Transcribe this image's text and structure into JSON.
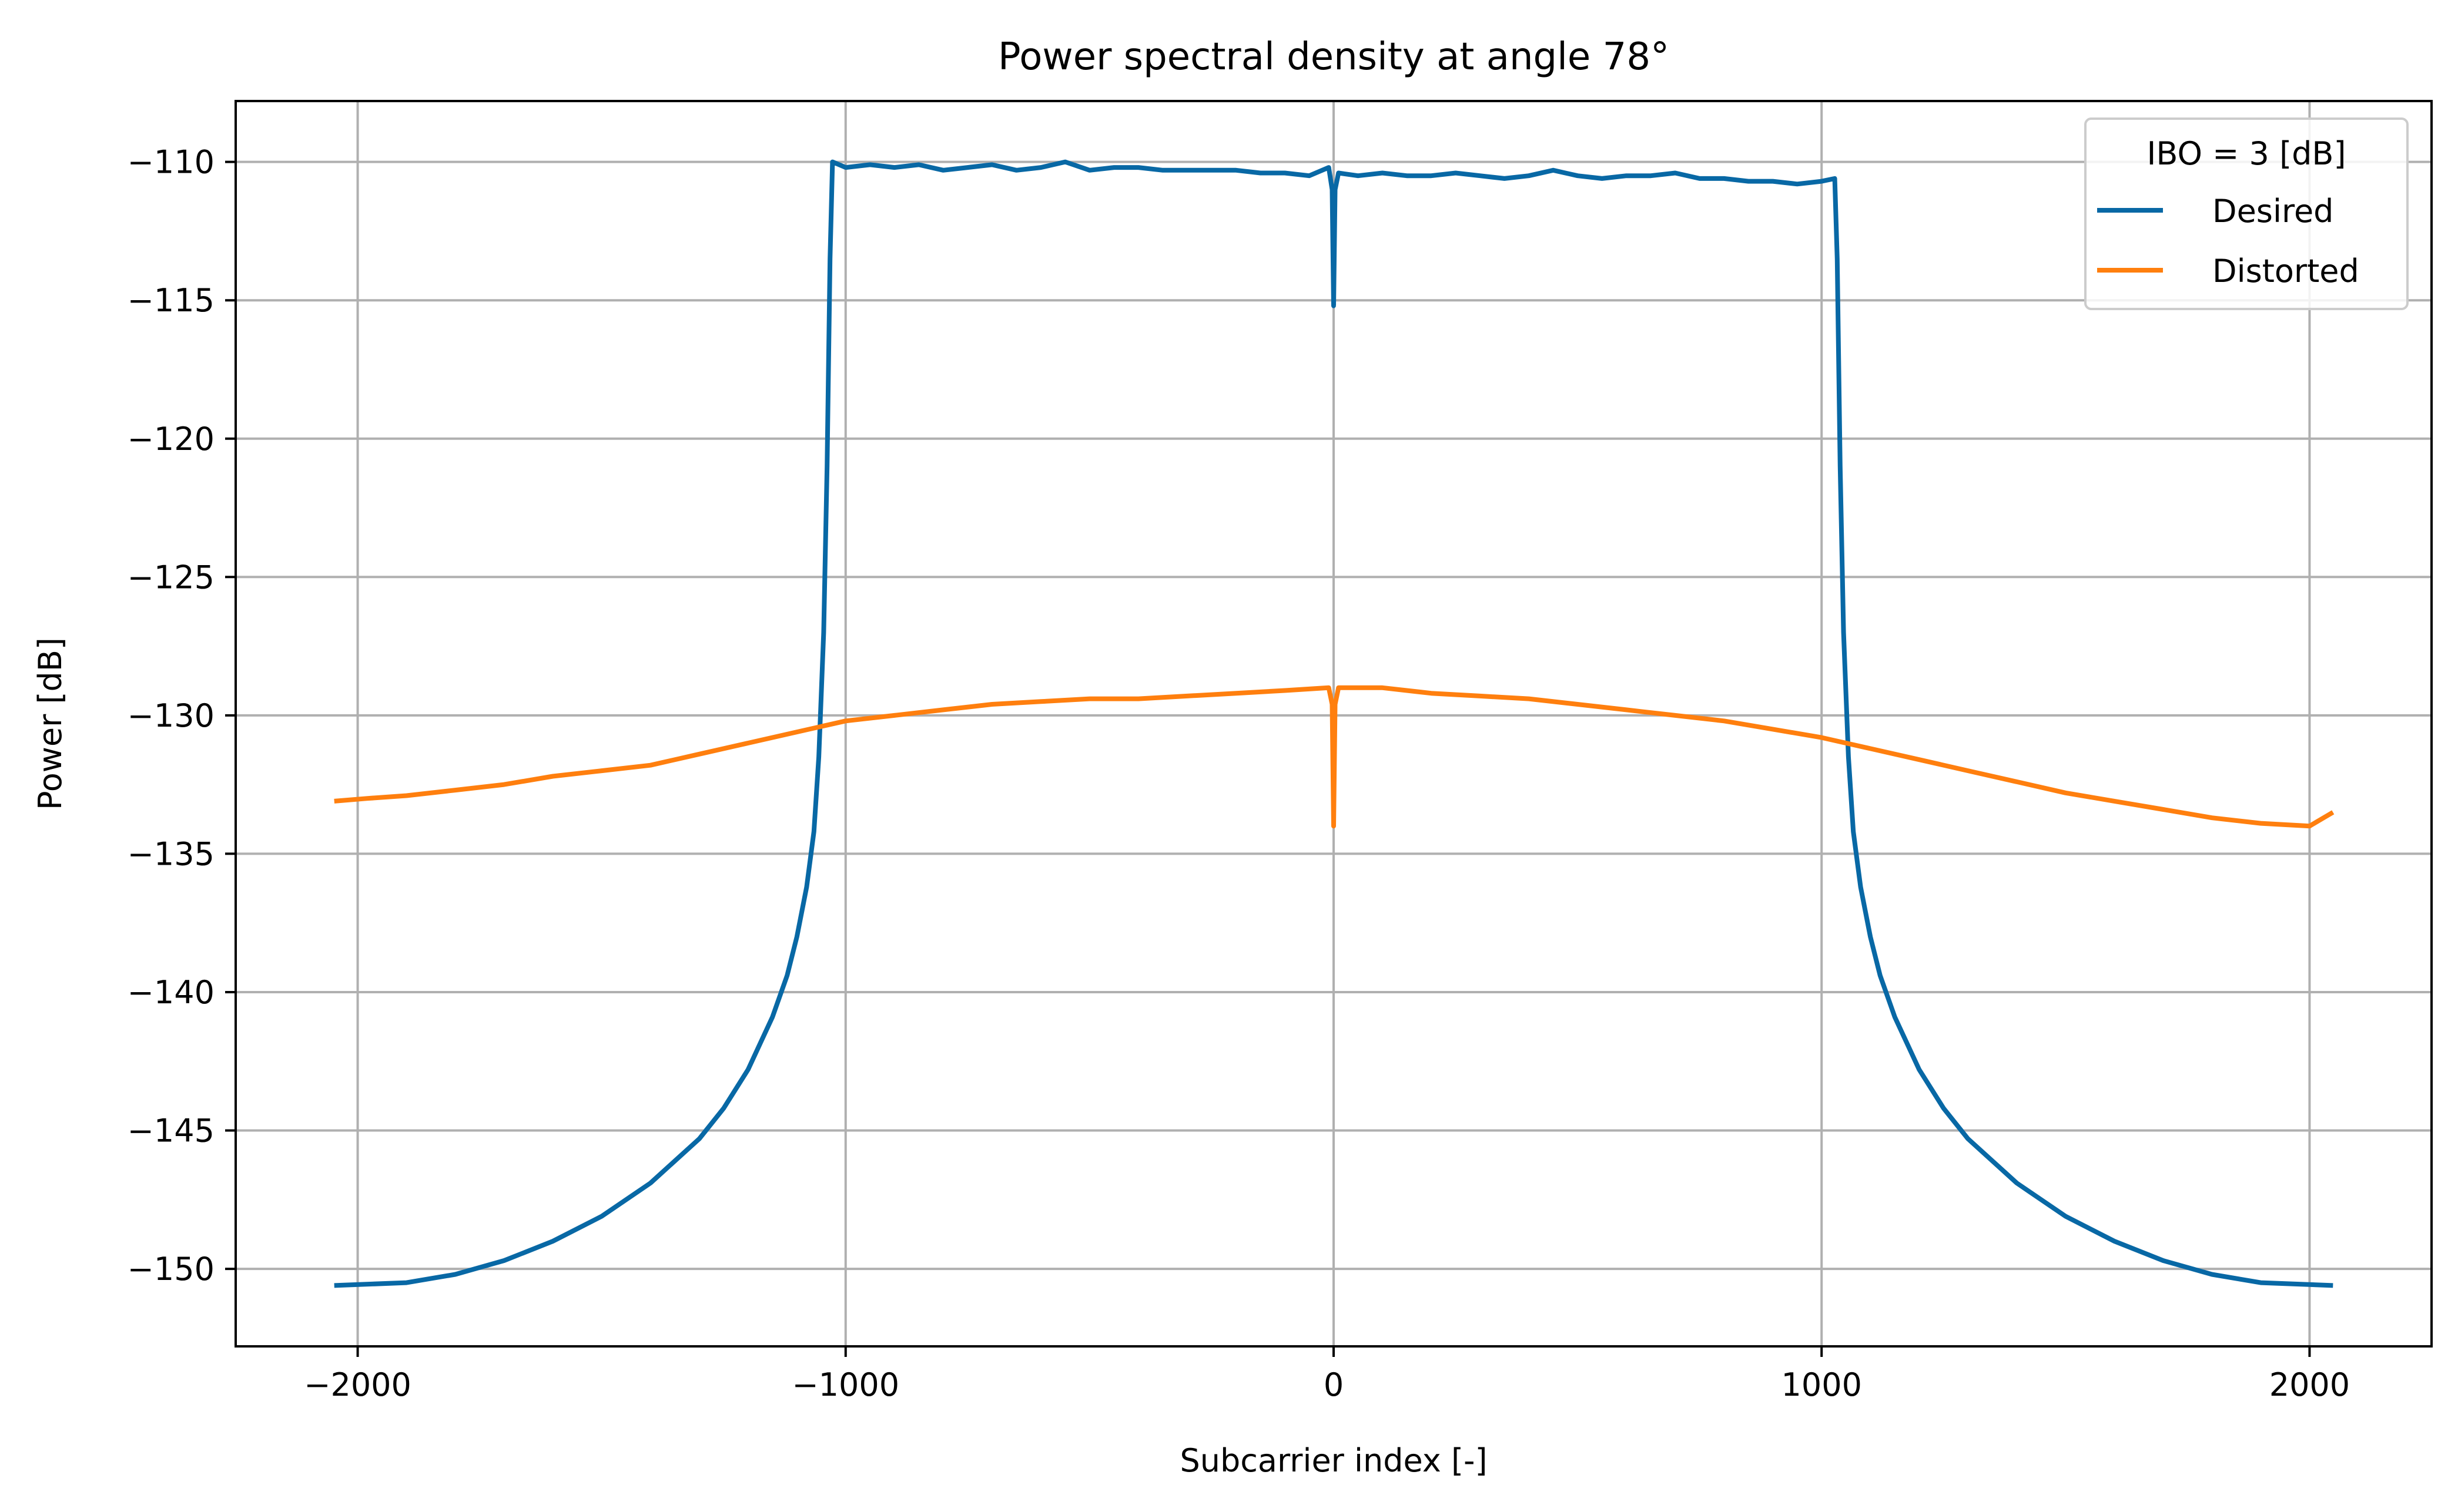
{
  "chart_data": {
    "type": "line",
    "title": "Power spectral density at angle 78°",
    "xlabel": "Subcarrier index [-]",
    "ylabel": "Power [dB]",
    "xlim": [
      -2250,
      2250
    ],
    "ylim": [
      -152.8,
      -107.8
    ],
    "xticks": [
      -2000,
      -1000,
      0,
      1000,
      2000
    ],
    "xtick_labels": [
      "−2000",
      "−1000",
      "0",
      "1000",
      "2000"
    ],
    "yticks": [
      -110,
      -115,
      -120,
      -125,
      -130,
      -135,
      -140,
      -145,
      -150
    ],
    "ytick_labels": [
      "−110",
      "−115",
      "−120",
      "−125",
      "−130",
      "−135",
      "−140",
      "−145",
      "−150"
    ],
    "grid": true,
    "legend": {
      "title": "IBO = 3 [dB]",
      "placement": "top-right"
    },
    "series": [
      {
        "name": "Desired",
        "color": "#0868a5",
        "points": [
          [
            -2048,
            -150.6
          ],
          [
            -1900,
            -150.5
          ],
          [
            -1800,
            -150.2
          ],
          [
            -1700,
            -149.7
          ],
          [
            -1600,
            -149.0
          ],
          [
            -1500,
            -148.1
          ],
          [
            -1400,
            -146.9
          ],
          [
            -1300,
            -145.3
          ],
          [
            -1250,
            -144.2
          ],
          [
            -1200,
            -142.8
          ],
          [
            -1150,
            -140.9
          ],
          [
            -1120,
            -139.4
          ],
          [
            -1100,
            -138.0
          ],
          [
            -1080,
            -136.2
          ],
          [
            -1065,
            -134.2
          ],
          [
            -1055,
            -131.5
          ],
          [
            -1045,
            -127.0
          ],
          [
            -1038,
            -121.0
          ],
          [
            -1032,
            -113.5
          ],
          [
            -1027,
            -110.0
          ],
          [
            -1000,
            -110.2
          ],
          [
            -950,
            -110.1
          ],
          [
            -900,
            -110.2
          ],
          [
            -850,
            -110.1
          ],
          [
            -800,
            -110.3
          ],
          [
            -750,
            -110.2
          ],
          [
            -700,
            -110.1
          ],
          [
            -650,
            -110.3
          ],
          [
            -600,
            -110.2
          ],
          [
            -550,
            -110.0
          ],
          [
            -500,
            -110.3
          ],
          [
            -450,
            -110.2
          ],
          [
            -400,
            -110.2
          ],
          [
            -350,
            -110.3
          ],
          [
            -300,
            -110.3
          ],
          [
            -250,
            -110.3
          ],
          [
            -200,
            -110.3
          ],
          [
            -150,
            -110.4
          ],
          [
            -100,
            -110.4
          ],
          [
            -50,
            -110.5
          ],
          [
            -10,
            -110.2
          ],
          [
            -3,
            -111.0
          ],
          [
            0,
            -115.2
          ],
          [
            3,
            -111.0
          ],
          [
            10,
            -110.4
          ],
          [
            50,
            -110.5
          ],
          [
            100,
            -110.4
          ],
          [
            150,
            -110.5
          ],
          [
            200,
            -110.5
          ],
          [
            250,
            -110.4
          ],
          [
            300,
            -110.5
          ],
          [
            350,
            -110.6
          ],
          [
            400,
            -110.5
          ],
          [
            450,
            -110.3
          ],
          [
            500,
            -110.5
          ],
          [
            550,
            -110.6
          ],
          [
            600,
            -110.5
          ],
          [
            650,
            -110.5
          ],
          [
            700,
            -110.4
          ],
          [
            750,
            -110.6
          ],
          [
            800,
            -110.6
          ],
          [
            850,
            -110.7
          ],
          [
            900,
            -110.7
          ],
          [
            950,
            -110.8
          ],
          [
            1000,
            -110.7
          ],
          [
            1027,
            -110.6
          ],
          [
            1032,
            -113.5
          ],
          [
            1038,
            -121.0
          ],
          [
            1045,
            -127.0
          ],
          [
            1055,
            -131.5
          ],
          [
            1065,
            -134.2
          ],
          [
            1080,
            -136.2
          ],
          [
            1100,
            -138.0
          ],
          [
            1120,
            -139.4
          ],
          [
            1150,
            -140.9
          ],
          [
            1200,
            -142.8
          ],
          [
            1250,
            -144.2
          ],
          [
            1300,
            -145.3
          ],
          [
            1400,
            -146.9
          ],
          [
            1500,
            -148.1
          ],
          [
            1600,
            -149.0
          ],
          [
            1700,
            -149.7
          ],
          [
            1800,
            -150.2
          ],
          [
            1900,
            -150.5
          ],
          [
            2048,
            -150.6
          ]
        ]
      },
      {
        "name": "Distorted",
        "color": "#ff7f0e",
        "points": [
          [
            -2048,
            -133.1
          ],
          [
            -1980,
            -133.0
          ],
          [
            -1900,
            -132.9
          ],
          [
            -1800,
            -132.7
          ],
          [
            -1700,
            -132.5
          ],
          [
            -1600,
            -132.2
          ],
          [
            -1500,
            -132.0
          ],
          [
            -1400,
            -131.8
          ],
          [
            -1300,
            -131.4
          ],
          [
            -1200,
            -131.0
          ],
          [
            -1100,
            -130.6
          ],
          [
            -1000,
            -130.2
          ],
          [
            -900,
            -130.0
          ],
          [
            -800,
            -129.8
          ],
          [
            -700,
            -129.6
          ],
          [
            -600,
            -129.5
          ],
          [
            -500,
            -129.4
          ],
          [
            -400,
            -129.4
          ],
          [
            -300,
            -129.3
          ],
          [
            -200,
            -129.2
          ],
          [
            -100,
            -129.1
          ],
          [
            -10,
            -129.0
          ],
          [
            -3,
            -129.6
          ],
          [
            0,
            -134.0
          ],
          [
            3,
            -129.6
          ],
          [
            10,
            -129.0
          ],
          [
            100,
            -129.0
          ],
          [
            200,
            -129.2
          ],
          [
            300,
            -129.3
          ],
          [
            400,
            -129.4
          ],
          [
            500,
            -129.6
          ],
          [
            600,
            -129.8
          ],
          [
            700,
            -130.0
          ],
          [
            800,
            -130.2
          ],
          [
            900,
            -130.5
          ],
          [
            1000,
            -130.8
          ],
          [
            1100,
            -131.2
          ],
          [
            1200,
            -131.6
          ],
          [
            1300,
            -132.0
          ],
          [
            1400,
            -132.4
          ],
          [
            1500,
            -132.8
          ],
          [
            1600,
            -133.1
          ],
          [
            1700,
            -133.4
          ],
          [
            1800,
            -133.7
          ],
          [
            1900,
            -133.9
          ],
          [
            2000,
            -134.0
          ],
          [
            2048,
            -133.5
          ]
        ]
      }
    ]
  }
}
